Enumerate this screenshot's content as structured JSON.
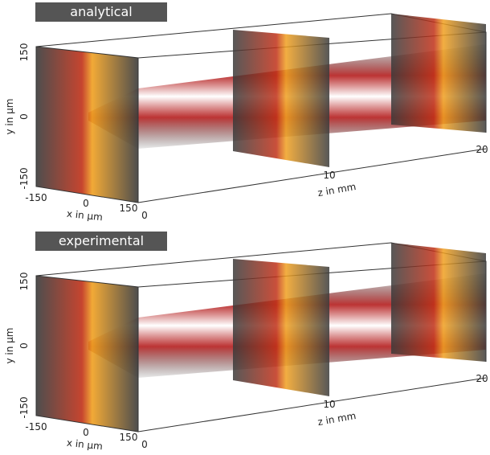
{
  "panels": [
    {
      "label": "analytical",
      "y_axis": {
        "title": "y in µm",
        "ticks": [
          "150",
          "0",
          "-150"
        ]
      },
      "x_axis": {
        "title": "x in µm",
        "ticks": [
          "-150",
          "0",
          "150"
        ]
      },
      "z_axis": {
        "title": "z in mm",
        "ticks": [
          "0",
          "10",
          "20"
        ]
      }
    },
    {
      "label": "experimental",
      "y_axis": {
        "title": "y in µm",
        "ticks": [
          "150",
          "0",
          "-150"
        ]
      },
      "x_axis": {
        "title": "x in µm",
        "ticks": [
          "-150",
          "0",
          "150"
        ]
      },
      "z_axis": {
        "title": "z in mm",
        "ticks": [
          "0",
          "10",
          "20"
        ]
      }
    }
  ]
}
